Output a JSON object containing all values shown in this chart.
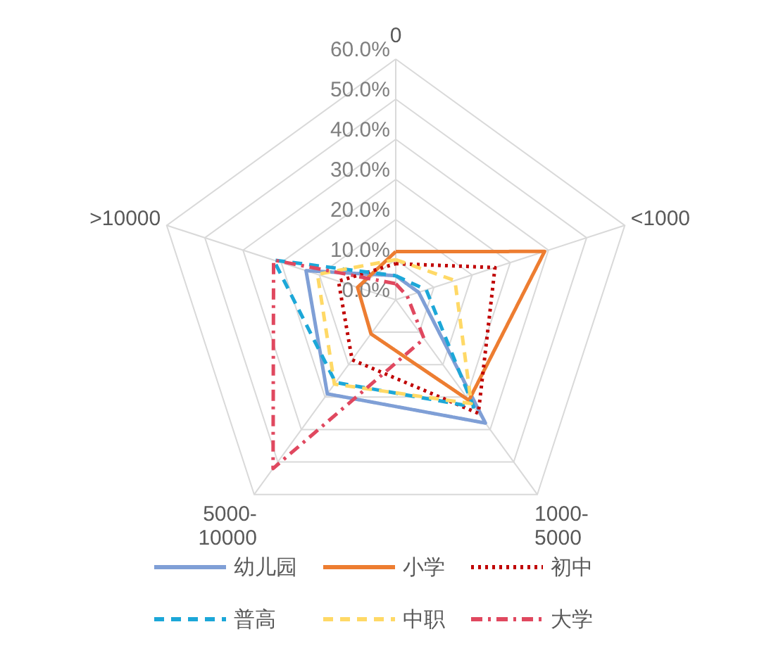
{
  "chart_data": {
    "type": "radar",
    "categories": [
      "0",
      "<1000",
      "1000-5000",
      "5000-10000",
      ">10000"
    ],
    "ylim": [
      0,
      60
    ],
    "yticks": [
      {
        "value": 0,
        "label": "0.0%"
      },
      {
        "value": 10,
        "label": "10.0%"
      },
      {
        "value": 20,
        "label": "20.0%"
      },
      {
        "value": 30,
        "label": "30.0%"
      },
      {
        "value": 40,
        "label": "40.0%"
      },
      {
        "value": 50,
        "label": "50.0%"
      },
      {
        "value": 60,
        "label": "60.0%"
      }
    ],
    "grid": true,
    "legend": "bottom",
    "series": [
      {
        "name": "幼儿园",
        "color": "#7f9fd6",
        "line_style": "solid",
        "values": [
          6,
          6,
          38,
          29,
          23.5
        ]
      },
      {
        "name": "小学",
        "color": "#ed7d31",
        "line_style": "solid",
        "values": [
          12,
          39,
          31,
          10.5,
          10
        ]
      },
      {
        "name": "初中",
        "color": "#c00000",
        "line_style": "dotted",
        "values": [
          9,
          26,
          35,
          18.5,
          15
        ]
      },
      {
        "name": "普高",
        "color": "#1ca7d8",
        "line_style": "dashed",
        "values": [
          6,
          8,
          33,
          25.5,
          32
        ]
      },
      {
        "name": "中职",
        "color": "#ffd966",
        "line_style": "dashed",
        "values": [
          10,
          15.5,
          32,
          26,
          20.5
        ]
      },
      {
        "name": "大学",
        "color": "#e0485f",
        "line_style": "dashdot",
        "values": [
          4,
          3,
          12,
          52,
          32
        ]
      }
    ]
  }
}
